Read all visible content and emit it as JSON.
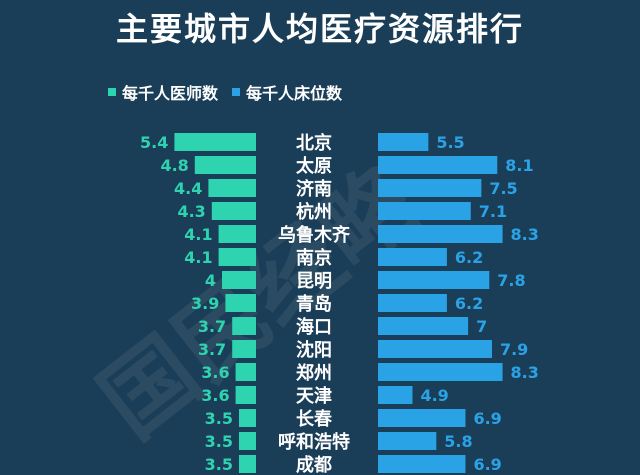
{
  "title": "主要城市人均医疗资源排行",
  "legend": {
    "doctors_label": "每千人医师数",
    "beds_label": "每千人床位数"
  },
  "watermark": "国民经略",
  "colors": {
    "background": "#1b3e58",
    "doctors": "#2ed3b0",
    "beds": "#2aa3e6"
  },
  "chart_data": {
    "type": "bar",
    "orientation": "horizontal-butterfly",
    "categories": [
      "北京",
      "太原",
      "济南",
      "杭州",
      "乌鲁木齐",
      "南京",
      "昆明",
      "青岛",
      "海口",
      "沈阳",
      "郑州",
      "天津",
      "长春",
      "呼和浩特",
      "成都"
    ],
    "series": [
      {
        "name": "每千人医师数",
        "values": [
          5.4,
          4.8,
          4.4,
          4.3,
          4.1,
          4.1,
          4,
          3.9,
          3.7,
          3.7,
          3.6,
          3.6,
          3.5,
          3.5,
          3.5
        ]
      },
      {
        "name": "每千人床位数",
        "values": [
          5.5,
          8.1,
          7.5,
          7.1,
          8.3,
          6.2,
          7.8,
          6.2,
          7,
          7.9,
          8.3,
          4.9,
          6.9,
          5.8,
          6.9
        ]
      }
    ],
    "value_labels": {
      "doctors": [
        "5.4",
        "4.8",
        "4.4",
        "4.3",
        "4.1",
        "4.1",
        "4",
        "3.9",
        "3.7",
        "3.7",
        "3.6",
        "3.6",
        "3.5",
        "3.5",
        "3.5"
      ],
      "beds": [
        "5.5",
        "8.1",
        "7.5",
        "7.1",
        "8.3",
        "6.2",
        "7.8",
        "6.2",
        "7",
        "7.9",
        "8.3",
        "4.9",
        "6.9",
        "5.8",
        "6.9"
      ]
    }
  }
}
